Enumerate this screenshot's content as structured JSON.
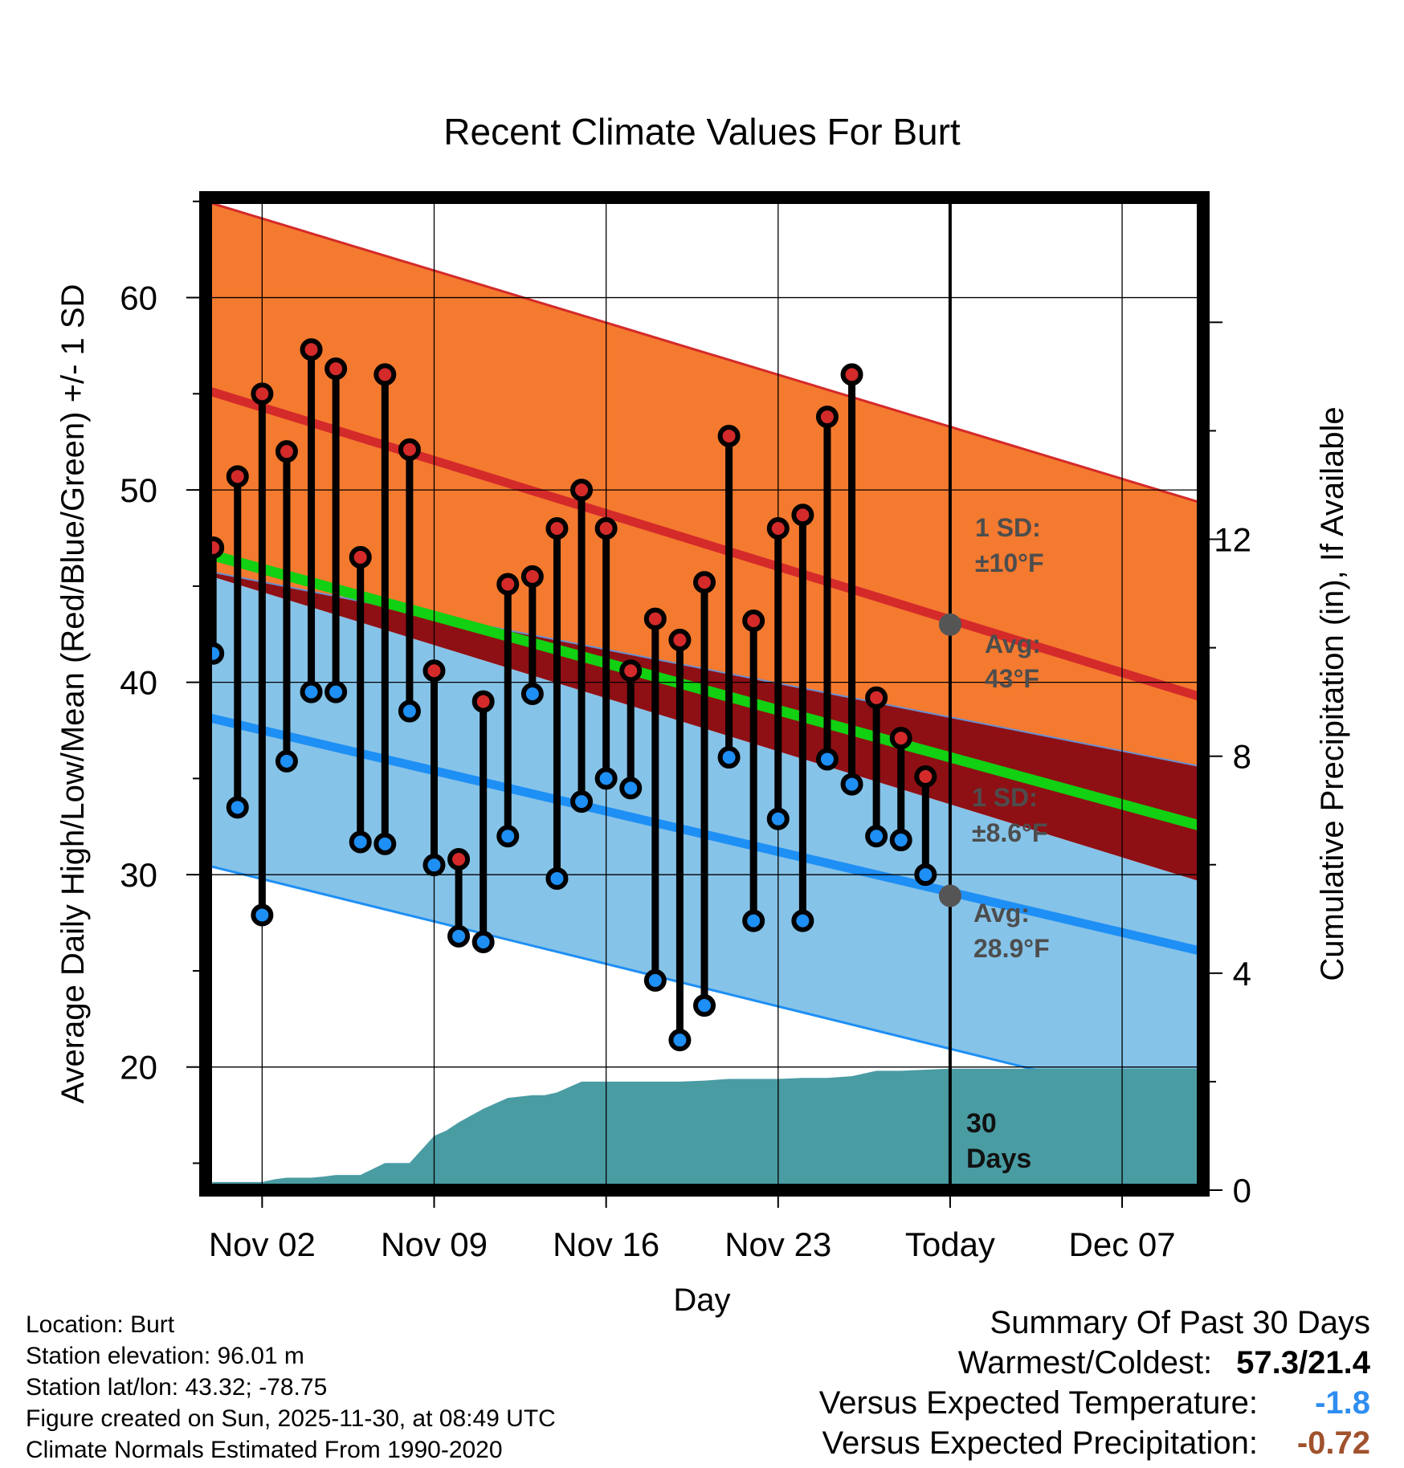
{
  "colors": {
    "high_band": "#f47a2f",
    "high_line": "#d42a2a",
    "low_band": "#86c3e8",
    "low_line": "#1e8ff5",
    "overlap": "#8e1014",
    "mean_line": "#12d012",
    "precip": "#4a9ca3",
    "high_dot": "#d42a2a",
    "low_dot": "#1e8ff5",
    "today_dot": "#555555",
    "temp_diff": "#2f8ef0",
    "precip_diff": "#a0522d"
  },
  "chart_data": {
    "type": "line",
    "title": "Recent Climate Values For Burt",
    "xlabel": "Day",
    "ylabel_left": "Average Daily High/Low/Mean (Red/Blue/Green) +/- 1 SD",
    "ylabel_right": "Cumulative Precipitation (in), If Available",
    "x_range": [
      -2.3,
      38.3
    ],
    "ylim_left": [
      13.6,
      65.2
    ],
    "ylim_right": [
      0,
      18.3
    ],
    "x_ticks": [
      {
        "day": 0,
        "label": "Nov 02"
      },
      {
        "day": 7,
        "label": "Nov 09"
      },
      {
        "day": 14,
        "label": "Nov 16"
      },
      {
        "day": 21,
        "label": "Nov 23"
      },
      {
        "day": 28,
        "label": "Today"
      },
      {
        "day": 35,
        "label": "Dec 07"
      }
    ],
    "y_ticks_left": [
      20,
      30,
      40,
      50,
      60
    ],
    "y_ticks_right": [
      0,
      4,
      8,
      12
    ],
    "today_day": 28,
    "normals": {
      "days": [
        -2.3,
        38.3
      ],
      "avg_high": [
        55.2,
        39.2
      ],
      "high_upper": [
        65.0,
        49.3
      ],
      "high_lower": [
        45.8,
        35.6
      ],
      "avg_low": [
        38.2,
        26.0
      ],
      "low_upper": [
        45.6,
        29.6
      ],
      "low_lower": [
        30.5,
        17.7
      ],
      "mean": [
        46.7,
        32.5
      ]
    },
    "series": [
      {
        "name": "Daily High",
        "days": [
          -2,
          -1,
          0,
          1,
          2,
          3,
          4,
          5,
          6,
          7,
          8,
          9,
          10,
          11,
          12,
          13,
          14,
          15,
          16,
          17,
          18,
          19,
          20,
          21,
          22,
          23,
          24,
          25,
          26,
          27
        ],
        "values": [
          47.0,
          50.7,
          55.0,
          52.0,
          57.3,
          56.3,
          46.5,
          56.0,
          52.1,
          40.6,
          30.8,
          39.0,
          45.1,
          45.5,
          48.0,
          50.0,
          48.0,
          40.6,
          43.3,
          42.2,
          45.2,
          52.8,
          43.2,
          48.0,
          48.7,
          53.8,
          56.0,
          39.2,
          37.1,
          35.1
        ]
      },
      {
        "name": "Daily Low",
        "days": [
          -2,
          -1,
          0,
          1,
          2,
          3,
          4,
          5,
          6,
          7,
          8,
          9,
          10,
          11,
          12,
          13,
          14,
          15,
          16,
          17,
          18,
          19,
          20,
          21,
          22,
          23,
          24,
          25,
          26,
          27
        ],
        "values": [
          41.5,
          33.5,
          27.9,
          35.9,
          39.5,
          39.5,
          31.7,
          31.6,
          38.5,
          30.5,
          26.8,
          26.5,
          32.0,
          39.4,
          29.8,
          33.8,
          35.0,
          34.5,
          24.5,
          21.4,
          23.2,
          36.1,
          27.6,
          32.9,
          27.6,
          36.0,
          34.7,
          32.0,
          31.8,
          30.0
        ]
      },
      {
        "name": "Cumulative Precipitation",
        "days": [
          -2.3,
          -2,
          -1,
          0,
          0.5,
          1,
          2,
          2.5,
          3,
          4,
          5,
          6,
          7,
          7.5,
          8,
          9,
          10,
          11,
          11.5,
          12,
          13,
          14,
          15,
          16,
          17,
          18,
          19,
          20,
          21,
          22,
          23,
          24,
          25,
          26,
          27,
          28,
          38.3
        ],
        "values": [
          0.02,
          0.15,
          0.15,
          0.15,
          0.2,
          0.23,
          0.23,
          0.25,
          0.28,
          0.28,
          0.5,
          0.5,
          1.0,
          1.1,
          1.25,
          1.5,
          1.7,
          1.75,
          1.75,
          1.8,
          2.0,
          2.0,
          2.0,
          2.0,
          2.0,
          2.02,
          2.05,
          2.05,
          2.05,
          2.07,
          2.07,
          2.1,
          2.2,
          2.2,
          2.22,
          2.24,
          2.24
        ]
      }
    ],
    "annotations": {
      "high_sd": {
        "line1": "1 SD:",
        "line2": "±10°F"
      },
      "high_avg": {
        "line1": "Avg:",
        "line2": "43°F",
        "value": 43
      },
      "low_sd": {
        "line1": "1 SD:",
        "line2": "±8.6°F"
      },
      "low_avg": {
        "line1": "Avg:",
        "line2": "28.9°F",
        "value": 28.9
      },
      "days": {
        "line1": "30",
        "line2": "Days"
      }
    }
  },
  "info": {
    "location": "Location: Burt",
    "elevation": "Station elevation: 96.01 m",
    "latlon": "Station lat/lon: 43.32; -78.75",
    "created": "Figure created on Sun, 2025-11-30, at 08:49 UTC",
    "normals": "Climate Normals Estimated From 1990-2020"
  },
  "summary": {
    "heading": "Summary Of Past 30 Days",
    "warm_label": "Warmest/Coldest:",
    "warm_value": "57.3/21.4",
    "temp_label": "Versus Expected Temperature:",
    "temp_value": "-1.8",
    "precip_label": "Versus Expected Precipitation:",
    "precip_value": "-0.72"
  }
}
